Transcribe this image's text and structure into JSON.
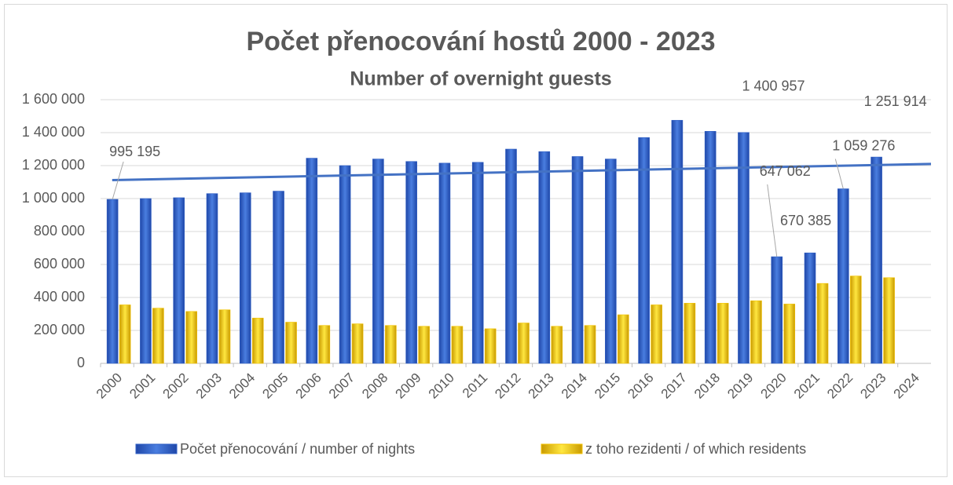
{
  "chart_data": {
    "type": "bar",
    "title": "Počet přenocování hostů 2000 - 2023",
    "subtitle": "Number of overnight guests",
    "categories": [
      "2000",
      "2001",
      "2002",
      "2003",
      "2004",
      "2005",
      "2006",
      "2007",
      "2008",
      "2009",
      "2010",
      "2011",
      "2012",
      "2013",
      "2014",
      "2015",
      "2016",
      "2017",
      "2018",
      "2019",
      "2020",
      "2021",
      "2022",
      "2023",
      "2024"
    ],
    "series": [
      {
        "name": "Počet přenocování / number of nights",
        "color": "#2f5fc4",
        "values": [
          995195,
          1000000,
          1005000,
          1030000,
          1035000,
          1045000,
          1245000,
          1200000,
          1240000,
          1225000,
          1215000,
          1220000,
          1300000,
          1285000,
          1255000,
          1240000,
          1370000,
          1475000,
          1408000,
          1400957,
          647062,
          670385,
          1059276,
          1251914,
          null
        ],
        "value_labels": [
          "995 195",
          null,
          null,
          null,
          null,
          null,
          null,
          null,
          null,
          null,
          null,
          null,
          null,
          null,
          null,
          null,
          null,
          null,
          null,
          "1 400 957",
          "647 062",
          "670 385",
          "1 059 276",
          "1 251 914",
          null
        ],
        "trendline": [
          1112000,
          1210000
        ]
      },
      {
        "name": "z toho rezidenti / of which residents",
        "color": "#f2c200",
        "values": [
          355000,
          335000,
          315000,
          325000,
          275000,
          250000,
          230000,
          240000,
          230000,
          225000,
          225000,
          210000,
          245000,
          225000,
          230000,
          295000,
          355000,
          365000,
          365000,
          380000,
          360000,
          485000,
          530000,
          520000,
          null
        ]
      }
    ],
    "ylim": [
      0,
      1600000
    ],
    "yticks": [
      0,
      {
        "value": 200000,
        "label": "200 000"
      },
      {
        "value": 400000,
        "label": "400 000"
      },
      {
        "value": 600000,
        "label": "600 000"
      },
      {
        "value": 800000,
        "label": "800 000"
      },
      {
        "value": 1000000,
        "label": "1 000 000"
      },
      {
        "value": 1200000,
        "label": "1 200 000"
      },
      {
        "value": 1400000,
        "label": "1 400 000"
      },
      {
        "value": 1600000,
        "label": "1 600 000"
      }
    ],
    "grid": true,
    "legend": "bottom"
  }
}
